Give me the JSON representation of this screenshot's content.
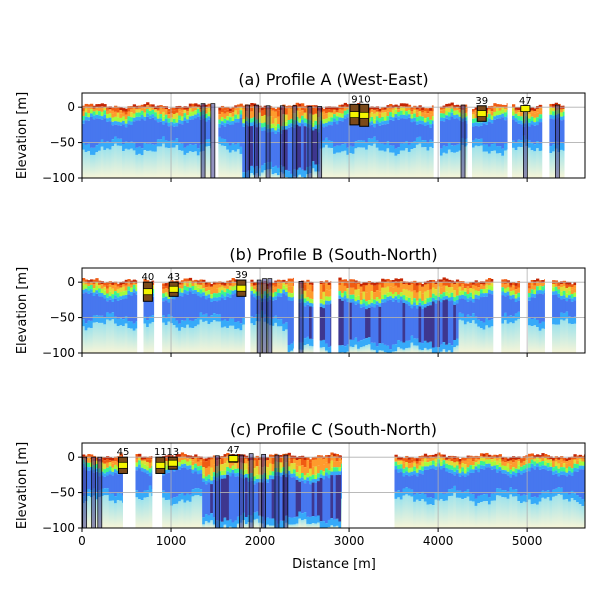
{
  "figure": {
    "xlabel": "Distance [m]",
    "ylabel": "Elevation [m]"
  },
  "chart_data": [
    {
      "type": "heatmap",
      "title": "(a) Profile A (West-East)",
      "xlabel": "",
      "ylabel": "Elevation [m]",
      "xlim": [
        0,
        5650
      ],
      "ylim": [
        -100,
        20
      ],
      "yticks": [
        0,
        -50,
        -100
      ],
      "xticks": [
        0,
        1000,
        2000,
        3000,
        4000,
        5000
      ],
      "show_xticklabels": false,
      "grid": true,
      "data_extent": [
        0,
        5650
      ],
      "gaps": [
        [
          1450,
          1530
        ],
        [
          3950,
          4000
        ],
        [
          4330,
          4380
        ],
        [
          4780,
          4820
        ],
        [
          5170,
          5230
        ],
        [
          5420,
          5650
        ]
      ],
      "deep_zone": [
        1800,
        2650
      ],
      "boreholes": [
        {
          "x": 1360,
          "top": 5,
          "bottom": -100
        },
        {
          "x": 1470,
          "top": 5,
          "bottom": -100
        },
        {
          "x": 1860,
          "top": 3,
          "bottom": -100
        },
        {
          "x": 1960,
          "top": 3,
          "bottom": -100
        },
        {
          "x": 2090,
          "top": 2,
          "bottom": -100
        },
        {
          "x": 2250,
          "top": 2,
          "bottom": -100
        },
        {
          "x": 2390,
          "top": 2,
          "bottom": -100
        },
        {
          "x": 2560,
          "top": 1,
          "bottom": -100
        },
        {
          "x": 2670,
          "top": 1,
          "bottom": -100
        },
        {
          "x": 4280,
          "top": 3,
          "bottom": -100
        },
        {
          "x": 4980,
          "top": 3,
          "bottom": -100
        },
        {
          "x": 5340,
          "top": 3,
          "bottom": -100
        }
      ],
      "wells": [
        {
          "label": "9",
          "x": 3060,
          "top": 4,
          "bottom": -25
        },
        {
          "label": "10",
          "x": 3170,
          "top": 4,
          "bottom": -27
        },
        {
          "label": "39",
          "x": 4490,
          "top": 2,
          "bottom": -20
        },
        {
          "label": "47",
          "x": 4980,
          "top": 2,
          "bottom": -6
        }
      ]
    },
    {
      "type": "heatmap",
      "title": "(b) Profile B (South-North)",
      "xlabel": "",
      "ylabel": "Elevation [m]",
      "xlim": [
        0,
        5650
      ],
      "ylim": [
        -100,
        20
      ],
      "yticks": [
        0,
        -50,
        -100
      ],
      "xticks": [
        0,
        1000,
        2000,
        3000,
        4000,
        5000
      ],
      "show_xticklabels": false,
      "grid": true,
      "data_extent": [
        0,
        5550
      ],
      "gaps": [
        [
          620,
          690
        ],
        [
          810,
          880
        ],
        [
          1830,
          1890
        ],
        [
          2380,
          2430
        ],
        [
          2600,
          2660
        ],
        [
          2800,
          2860
        ],
        [
          4620,
          4690
        ],
        [
          4920,
          4990
        ],
        [
          5200,
          5270
        ]
      ],
      "deep_zone": [
        2300,
        4200
      ],
      "boreholes": [
        {
          "x": 1990,
          "top": 3,
          "bottom": -100
        },
        {
          "x": 2050,
          "top": 5,
          "bottom": -100
        },
        {
          "x": 2110,
          "top": 5,
          "bottom": -100
        },
        {
          "x": 2460,
          "top": 1,
          "bottom": -100
        }
      ],
      "wells": [
        {
          "label": "40",
          "x": 740,
          "top": 0,
          "bottom": -27
        },
        {
          "label": "43",
          "x": 1030,
          "top": 0,
          "bottom": -20
        },
        {
          "label": "39",
          "x": 1790,
          "top": 3,
          "bottom": -20
        }
      ]
    },
    {
      "type": "heatmap",
      "title": "(c) Profile C (South-North)",
      "xlabel": "Distance [m]",
      "ylabel": "Elevation [m]",
      "xlim": [
        0,
        5650
      ],
      "ylim": [
        -100,
        20
      ],
      "yticks": [
        0,
        -50,
        -100
      ],
      "xticks": [
        0,
        1000,
        2000,
        3000,
        4000,
        5000
      ],
      "xticklabels": [
        "0",
        "1000",
        "2000",
        "3000",
        "4000",
        "5000"
      ],
      "show_xticklabels": true,
      "grid": true,
      "data_extent": [
        0,
        5650
      ],
      "gaps": [
        [
          460,
          600
        ],
        [
          790,
          880
        ],
        [
          2920,
          3490
        ]
      ],
      "deep_zone": [
        1350,
        2900
      ],
      "boreholes": [
        {
          "x": 30,
          "top": 0,
          "bottom": -100
        },
        {
          "x": 130,
          "top": 0,
          "bottom": -100
        },
        {
          "x": 200,
          "top": 0,
          "bottom": -100
        },
        {
          "x": 1520,
          "top": 2,
          "bottom": -100
        },
        {
          "x": 1790,
          "top": 3,
          "bottom": -100
        },
        {
          "x": 1900,
          "top": 5,
          "bottom": -100
        },
        {
          "x": 2040,
          "top": 4,
          "bottom": -100
        },
        {
          "x": 2190,
          "top": 3,
          "bottom": -100
        },
        {
          "x": 2290,
          "top": 3,
          "bottom": -100
        }
      ],
      "wells": [
        {
          "label": "45",
          "x": 460,
          "top": 0,
          "bottom": -23
        },
        {
          "label": "11",
          "x": 880,
          "top": 0,
          "bottom": -23
        },
        {
          "label": "13",
          "x": 1020,
          "top": 0,
          "bottom": -17
        },
        {
          "label": "47",
          "x": 1700,
          "top": 3,
          "bottom": -7
        }
      ]
    }
  ]
}
